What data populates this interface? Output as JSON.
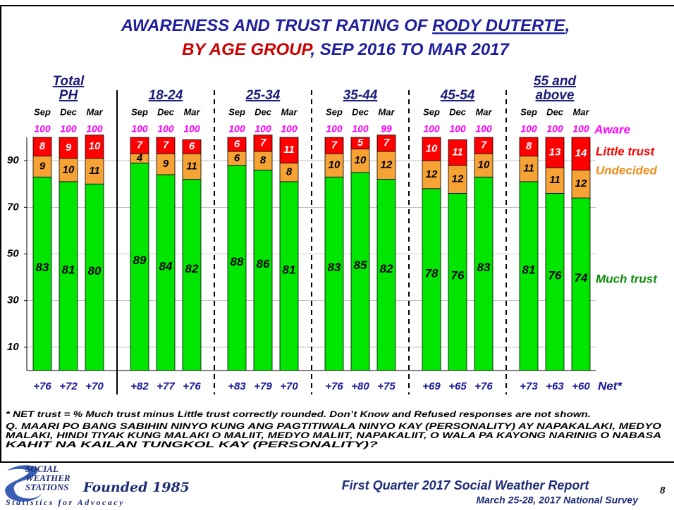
{
  "chart_data": {
    "type": "bar",
    "stacked": true,
    "title_parts": [
      "AWARENESS AND TRUST RATING OF ",
      "RODY DUTERTE",
      ","
    ],
    "subtitle_parts": [
      "BY AGE GROUP",
      ", SEP 2016 TO MAR 2017"
    ],
    "groups": [
      [
        "Total",
        "PH"
      ],
      [
        "18-24"
      ],
      [
        "25-34"
      ],
      [
        "35-44"
      ],
      [
        "45-54"
      ],
      [
        "55 and",
        "above"
      ]
    ],
    "periods": [
      "Sep",
      "Dec",
      "Mar"
    ],
    "series": [
      {
        "name": "Much trust",
        "color": "#00e600",
        "label_color": "#000000",
        "values": [
          83,
          81,
          80,
          89,
          84,
          82,
          88,
          86,
          81,
          83,
          85,
          82,
          78,
          76,
          83,
          81,
          76,
          74
        ]
      },
      {
        "name": "Undecided",
        "color": "#f7a234",
        "label_color": "#000000",
        "values": [
          9,
          10,
          11,
          4,
          9,
          11,
          6,
          8,
          8,
          10,
          10,
          12,
          12,
          12,
          10,
          11,
          11,
          12
        ]
      },
      {
        "name": "Little trust",
        "color": "#ff0000",
        "label_color": "#ffffff",
        "values": [
          8,
          9,
          10,
          7,
          7,
          6,
          6,
          7,
          11,
          7,
          5,
          7,
          10,
          11,
          7,
          8,
          13,
          14
        ]
      }
    ],
    "aware": {
      "name": "Aware",
      "color": "#ff00ff",
      "values": [
        100,
        100,
        100,
        100,
        100,
        100,
        100,
        100,
        100,
        100,
        100,
        99,
        100,
        100,
        100,
        100,
        100,
        100
      ]
    },
    "net": {
      "name": "Net*",
      "color": "#1a1a9c",
      "values": [
        76,
        72,
        70,
        82,
        77,
        76,
        83,
        79,
        70,
        76,
        80,
        75,
        69,
        65,
        76,
        73,
        63,
        60
      ],
      "value_labels": [
        "+76",
        "+72",
        "+70",
        "+82",
        "+77",
        "+76",
        "+83",
        "+79",
        "+70",
        "+76",
        "+80",
        "+75",
        "+69",
        "+65",
        "+76",
        "+73",
        "+63",
        "+60"
      ]
    },
    "ylim": [
      0,
      100
    ],
    "yticks": [
      10,
      30,
      50,
      70,
      90
    ],
    "grid": true,
    "notes": [
      "* NET trust = % Much trust minus Little trust correctly rounded. Don’t Know and Refused responses are not shown.",
      "Q. MAARI PO BANG SABIHIN NINYO KUNG ANG PAGTITIWALA NINYO KAY (PERSONALITY) AY NAPAKALAKI, MEDYO",
      "MALAKI, HINDI TIYAK KUNG MALAKI O MALIIT, MEDYO MALIIT, NAPAKALIIT, O WALA PA KAYONG NARINIG O NABASA",
      "KAHIT NA KAILAN TUNGKOL KAY (PERSONALITY)?"
    ]
  },
  "footer": {
    "logo_lines": [
      "SOCIAL",
      "WEATHER",
      "STATIONS"
    ],
    "founded": "Founded 1985",
    "tagline": "Statistics for Advocacy",
    "report": "First Quarter 2017 Social Weather Report",
    "survey": "March 25-28, 2017 National Survey",
    "page": "8"
  }
}
